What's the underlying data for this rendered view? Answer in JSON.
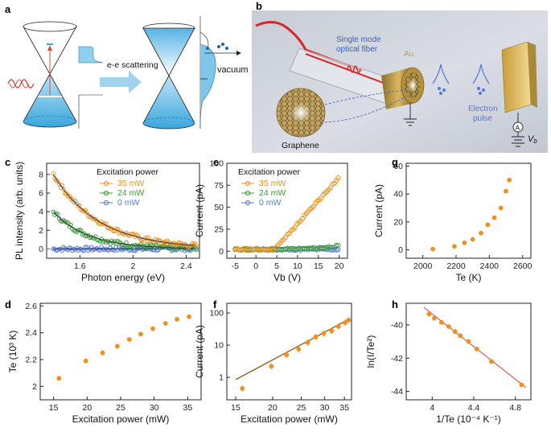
{
  "colors": {
    "orange": "#f0901c",
    "green": "#3a9a3a",
    "blue": "#5577dd",
    "fitDark": "#333333",
    "fitH": "#e86060",
    "fitF": "#9a5a1a"
  },
  "labels": [
    "a",
    "b",
    "c",
    "d",
    "e",
    "f",
    "g",
    "h"
  ],
  "panel_a": {
    "escattering": "e-e scattering",
    "vacuum": "vacuum"
  },
  "panel_b": {
    "fiber": "Single mode\noptical fiber",
    "au": "Au",
    "pulse": "Electron\npulse",
    "graphene": "Graphene",
    "ammeter": "A",
    "vb": "V",
    "vb_sub": "b"
  },
  "chart_data": [
    {
      "id": "c",
      "type": "scatter",
      "xlabel": "Photon energy (eV)",
      "ylabel": "PL intensity (arb. units)",
      "xlim": [
        1.35,
        2.5
      ],
      "ylim": [
        -1,
        9.2
      ],
      "xticks": [
        1.6,
        2.0,
        2.4
      ],
      "yticks": [
        0,
        2,
        4,
        6,
        8
      ],
      "legend_title": "Excitation power",
      "series": [
        {
          "name": "35 mW",
          "color": "orange",
          "amp": 8.0,
          "decay": 2.9
        },
        {
          "name": "24 mW",
          "color": "green",
          "amp": 4.0,
          "decay": 3.8
        },
        {
          "name": "0 mW",
          "color": "blue",
          "amp": 0.0,
          "decay": 1.0
        }
      ]
    },
    {
      "id": "d",
      "type": "scatter",
      "xlabel": "Excitation power (mW)",
      "ylabel": "Te (10³ K)",
      "xlim": [
        13,
        37
      ],
      "ylim": [
        1.9,
        2.62
      ],
      "xticks": [
        15,
        20,
        25,
        30,
        35
      ],
      "yticks": [
        2.0,
        2.2,
        2.4,
        2.6
      ],
      "x": [
        15.8,
        19.8,
        22.3,
        24.5,
        26.3,
        28,
        29.8,
        31.7,
        33.4,
        35.2
      ],
      "y": [
        2.06,
        2.19,
        2.25,
        2.3,
        2.35,
        2.39,
        2.43,
        2.47,
        2.5,
        2.52
      ]
    },
    {
      "id": "e",
      "type": "scatter",
      "xlabel": "Vb (V)",
      "ylabel": "Current (pA)",
      "xlim": [
        -7,
        22
      ],
      "ylim": [
        -8,
        100
      ],
      "xticks": [
        -5,
        0,
        5,
        10,
        15,
        20
      ],
      "yticks": [
        0,
        25,
        50,
        75,
        100
      ],
      "legend_title": "Excitation power",
      "series": [
        {
          "name": "35 mW",
          "color": "orange",
          "onset": 4.5,
          "slope": 5.3,
          "power": 1
        },
        {
          "name": "24 mW",
          "color": "green",
          "onset": 4.5,
          "slope": 0.016,
          "power": 2
        },
        {
          "name": "0 mW",
          "color": "blue",
          "onset": 0,
          "slope": 0,
          "power": 1
        }
      ]
    },
    {
      "id": "f",
      "type": "scatter",
      "xlabel": "Excitation power (mW)",
      "ylabel": "Current (pA)",
      "xlim": [
        14,
        37
      ],
      "ylim": [
        0.2,
        200
      ],
      "yscale": "log",
      "xscale": "log",
      "xticks": [
        15,
        20,
        25,
        30,
        35
      ],
      "yticks": [
        1,
        10,
        100
      ],
      "x": [
        15.8,
        19.8,
        22.3,
        24.5,
        26.3,
        28,
        29.8,
        31.7,
        33.4,
        35.2,
        36.2
      ],
      "y": [
        0.45,
        2.2,
        5.0,
        7.5,
        12,
        18,
        23,
        28,
        38,
        50,
        60
      ],
      "fit": {
        "x": [
          15,
          36.5
        ],
        "y": [
          0.85,
          66
        ]
      }
    },
    {
      "id": "g",
      "type": "scatter",
      "xlabel": "Te (K)",
      "ylabel": "Current (pA)",
      "xlim": [
        1900,
        2650
      ],
      "ylim": [
        -6,
        62
      ],
      "xticks": [
        2000,
        2200,
        2400,
        2600
      ],
      "yticks": [
        0,
        20,
        40,
        60
      ],
      "x": [
        2060,
        2190,
        2250,
        2300,
        2350,
        2390,
        2430,
        2470,
        2500,
        2520
      ],
      "y": [
        0.5,
        2.5,
        5,
        7.5,
        12,
        18,
        23,
        30,
        42,
        50
      ]
    },
    {
      "id": "h",
      "type": "scatter",
      "xlabel": "1/Te (10⁻⁴ K⁻¹)",
      "ylabel": "ln(I/Te²)",
      "xlim": [
        3.75,
        4.95
      ],
      "ylim": [
        -44.5,
        -38.7
      ],
      "xticks": [
        4.0,
        4.4,
        4.8
      ],
      "yticks": [
        -44,
        -42,
        -40
      ],
      "x": [
        3.97,
        4.02,
        4.09,
        4.16,
        4.22,
        4.27,
        4.35,
        4.43,
        4.57,
        4.86
      ],
      "y": [
        -39.35,
        -39.6,
        -39.85,
        -40.1,
        -40.4,
        -40.65,
        -41.0,
        -41.45,
        -42.2,
        -43.6
      ],
      "fit": {
        "x": [
          3.92,
          4.9
        ],
        "y": [
          -38.95,
          -43.75
        ]
      }
    }
  ]
}
